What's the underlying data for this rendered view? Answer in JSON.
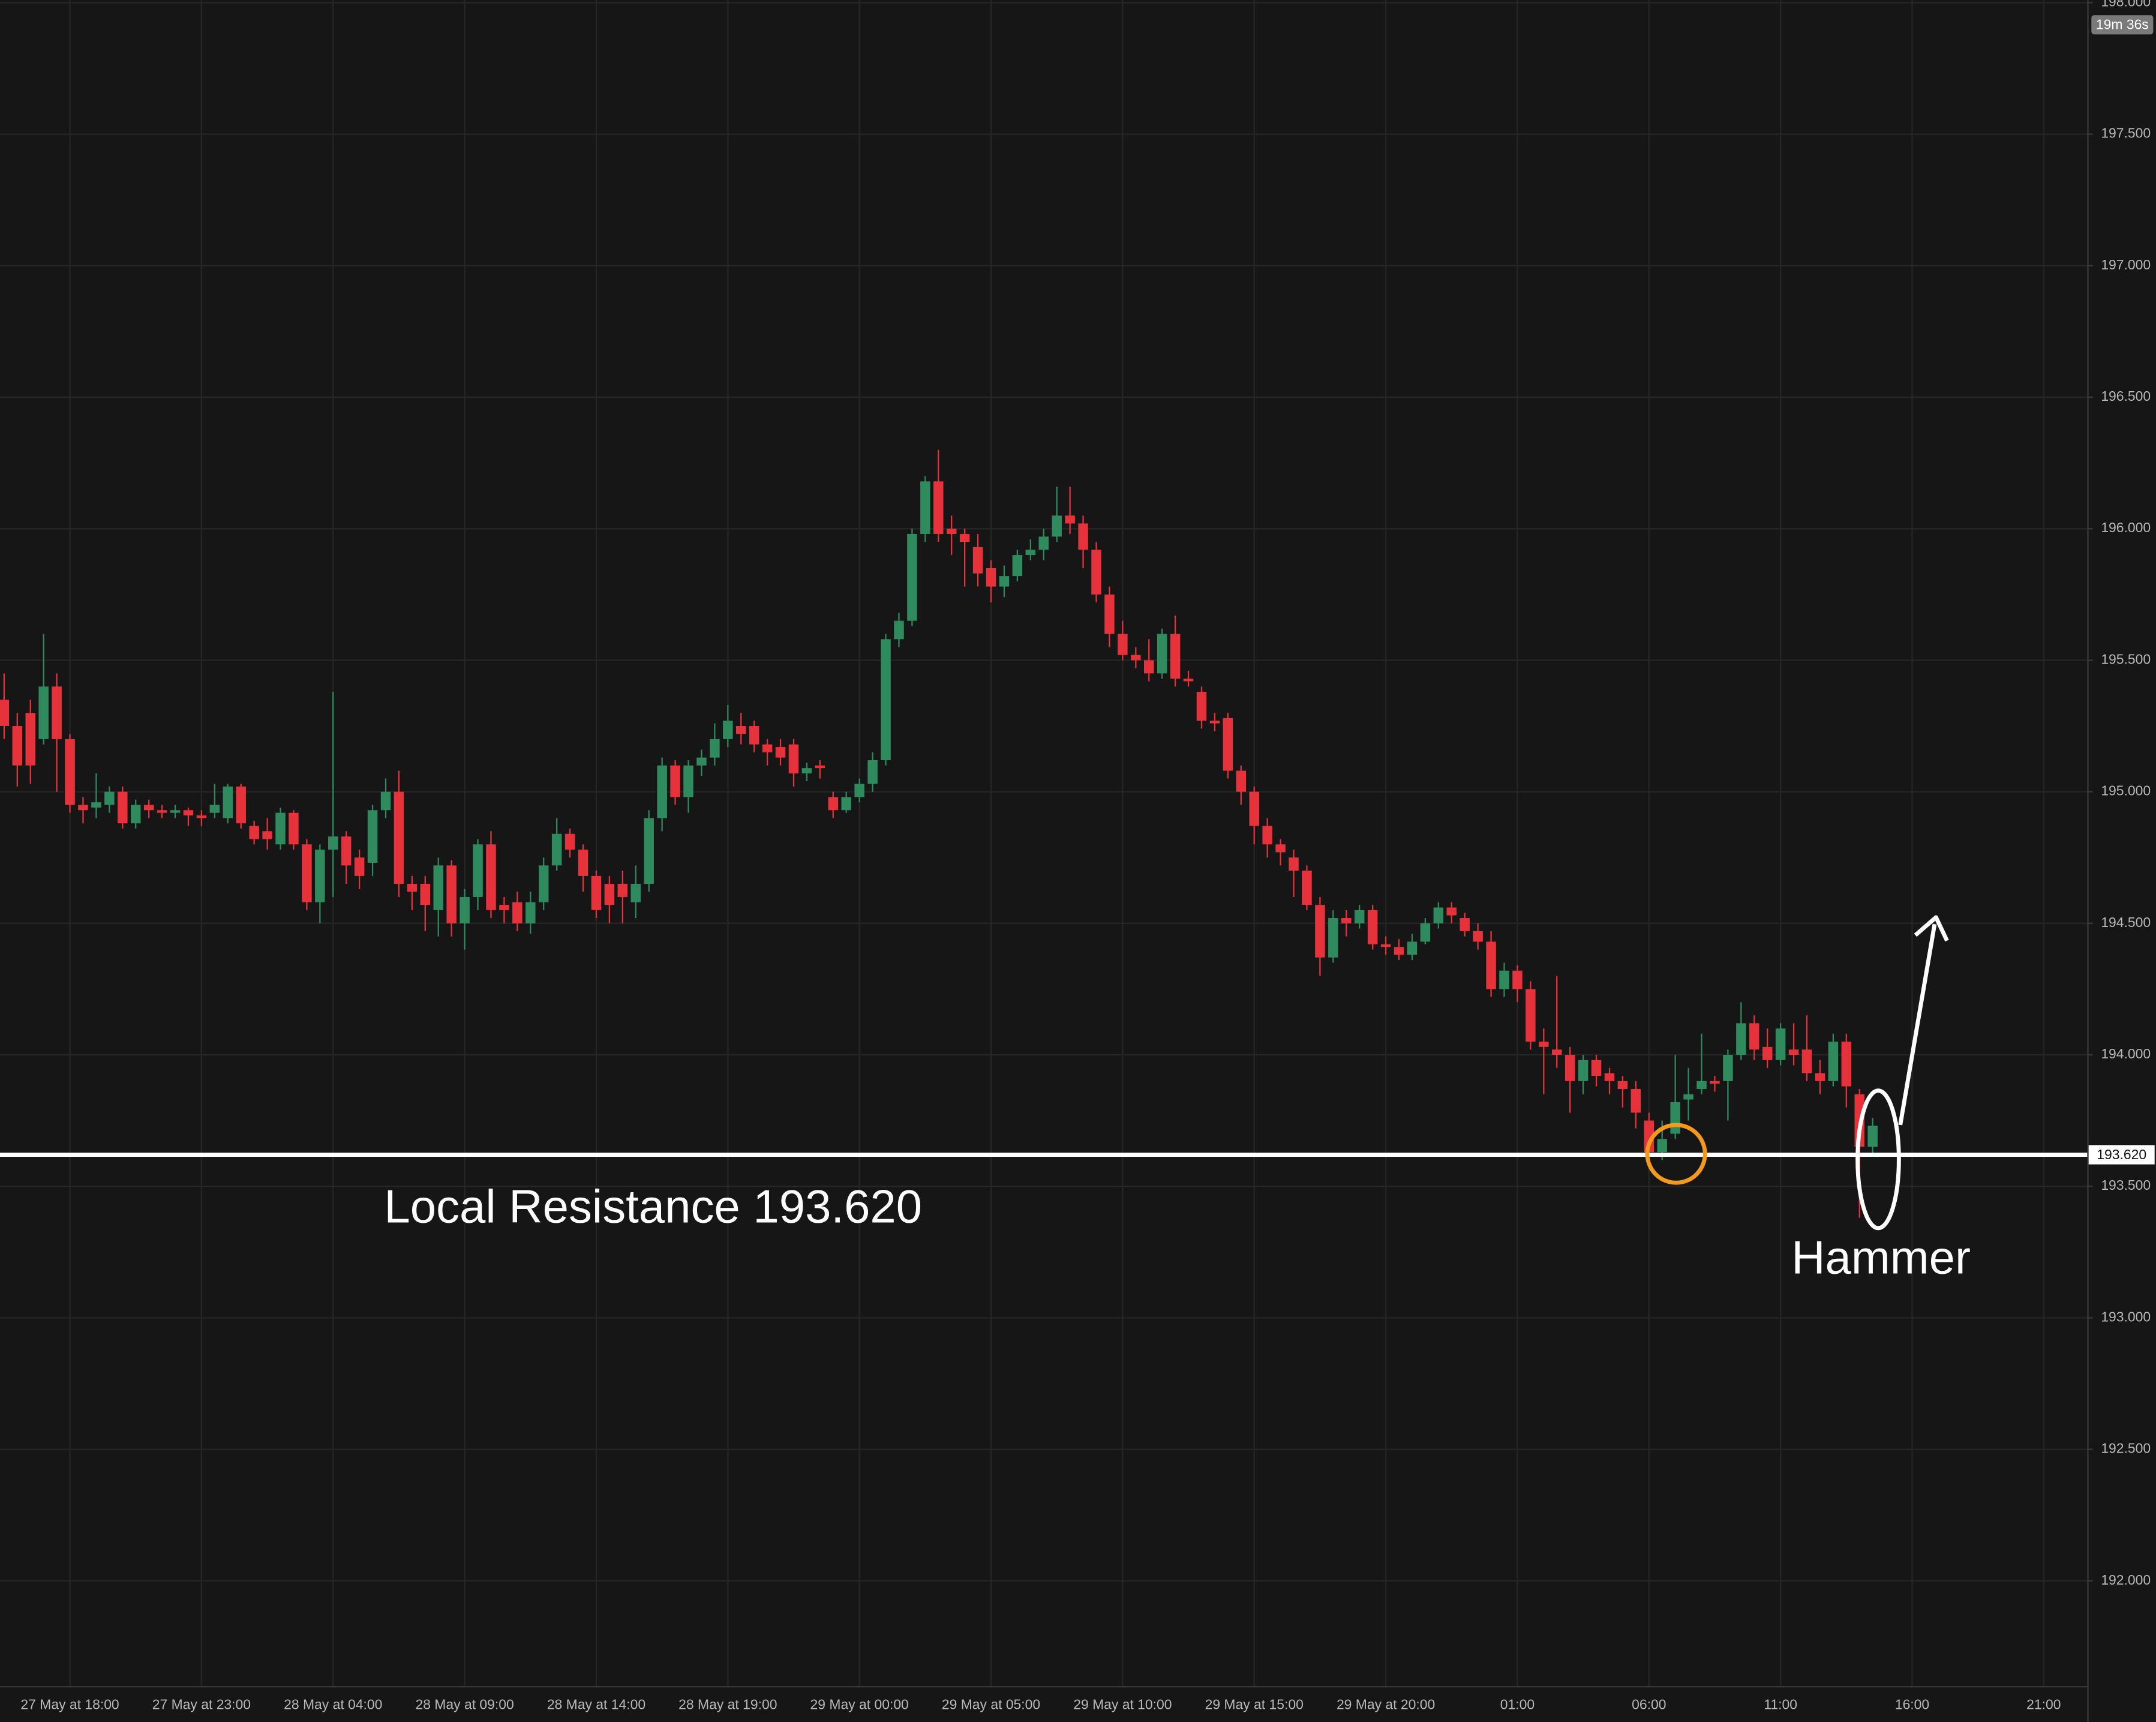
{
  "chart_data": {
    "type": "candlestick",
    "up_color": "#2f8a5e",
    "down_color": "#e5323b",
    "grid": true,
    "ylim": [
      191.6,
      198.01
    ],
    "yticks": [
      {
        "value": 192,
        "label": "192.000"
      },
      {
        "value": 192.5,
        "label": "192.500"
      },
      {
        "value": 193,
        "label": "193.000"
      },
      {
        "value": 193.5,
        "label": "193.500"
      },
      {
        "value": 194,
        "label": "194.000"
      },
      {
        "value": 194.5,
        "label": "194.500"
      },
      {
        "value": 195,
        "label": "195.000"
      },
      {
        "value": 195.5,
        "label": "195.500"
      },
      {
        "value": 196,
        "label": "196.000"
      },
      {
        "value": 196.5,
        "label": "196.500"
      },
      {
        "value": 197,
        "label": "197.000"
      },
      {
        "value": 197.5,
        "label": "197.500"
      },
      {
        "value": 198,
        "label": "198.000"
      }
    ],
    "categories": [
      null,
      null,
      null,
      null,
      null,
      "27 May at 18:00",
      null,
      null,
      null,
      null,
      null,
      null,
      null,
      null,
      null,
      "27 May at 23:00",
      null,
      null,
      null,
      null,
      null,
      null,
      null,
      null,
      null,
      "28 May at 04:00",
      null,
      null,
      null,
      null,
      null,
      null,
      null,
      null,
      null,
      "28 May at 09:00",
      null,
      null,
      null,
      null,
      null,
      null,
      null,
      null,
      null,
      "28 May at 14:00",
      null,
      null,
      null,
      null,
      null,
      null,
      null,
      null,
      null,
      "28 May at 19:00",
      null,
      null,
      null,
      null,
      null,
      null,
      null,
      null,
      null,
      "29 May at 00:00",
      null,
      null,
      null,
      null,
      null,
      null,
      null,
      null,
      null,
      "29 May at 05:00",
      null,
      null,
      null,
      null,
      null,
      null,
      null,
      null,
      null,
      "29 May at 10:00",
      null,
      null,
      null,
      null,
      null,
      null,
      null,
      null,
      null,
      "29 May at 15:00",
      null,
      null,
      null,
      null,
      null,
      null,
      null,
      null,
      null,
      "29 May at 20:00",
      null,
      null,
      null,
      null,
      null,
      null,
      null,
      null,
      null,
      "01:00",
      null,
      null,
      null,
      null,
      null,
      null,
      null,
      null,
      null,
      "06:00",
      null,
      null,
      null,
      null,
      null,
      null,
      null,
      null,
      null,
      "11:00",
      null,
      null,
      null,
      null,
      null,
      null,
      null,
      null,
      null,
      "16:00",
      null,
      null,
      null,
      null,
      null,
      null,
      null,
      null,
      null,
      "21:00"
    ],
    "candles": [
      {
        "open": 195.35,
        "high": 195.45,
        "low": 195.2,
        "close": 195.25
      },
      {
        "open": 195.25,
        "high": 195.3,
        "low": 195.02,
        "close": 195.1
      },
      {
        "open": 195.3,
        "high": 195.35,
        "low": 195.03,
        "close": 195.1
      },
      {
        "open": 195.2,
        "high": 195.6,
        "low": 195.18,
        "close": 195.4
      },
      {
        "open": 195.4,
        "high": 195.45,
        "low": 195.0,
        "close": 195.2
      },
      {
        "open": 195.2,
        "high": 195.22,
        "low": 194.92,
        "close": 194.95
      },
      {
        "open": 194.95,
        "high": 194.98,
        "low": 194.88,
        "close": 194.93
      },
      {
        "open": 194.94,
        "high": 195.07,
        "low": 194.9,
        "close": 194.96
      },
      {
        "open": 194.95,
        "high": 195.02,
        "low": 194.92,
        "close": 195.0
      },
      {
        "open": 195.0,
        "high": 195.02,
        "low": 194.86,
        "close": 194.88
      },
      {
        "open": 194.88,
        "high": 194.97,
        "low": 194.86,
        "close": 194.95
      },
      {
        "open": 194.95,
        "high": 194.97,
        "low": 194.9,
        "close": 194.93
      },
      {
        "open": 194.93,
        "high": 194.95,
        "low": 194.9,
        "close": 194.92
      },
      {
        "open": 194.92,
        "high": 194.95,
        "low": 194.9,
        "close": 194.93
      },
      {
        "open": 194.93,
        "high": 194.94,
        "low": 194.87,
        "close": 194.91
      },
      {
        "open": 194.91,
        "high": 194.93,
        "low": 194.87,
        "close": 194.9
      },
      {
        "open": 194.92,
        "high": 195.03,
        "low": 194.9,
        "close": 194.95
      },
      {
        "open": 194.9,
        "high": 195.03,
        "low": 194.88,
        "close": 195.02
      },
      {
        "open": 195.02,
        "high": 195.03,
        "low": 194.86,
        "close": 194.88
      },
      {
        "open": 194.87,
        "high": 194.89,
        "low": 194.8,
        "close": 194.82
      },
      {
        "open": 194.85,
        "high": 194.9,
        "low": 194.78,
        "close": 194.82
      },
      {
        "open": 194.8,
        "high": 194.94,
        "low": 194.78,
        "close": 194.92
      },
      {
        "open": 194.92,
        "high": 194.93,
        "low": 194.78,
        "close": 194.8
      },
      {
        "open": 194.8,
        "high": 194.82,
        "low": 194.55,
        "close": 194.58
      },
      {
        "open": 194.58,
        "high": 194.8,
        "low": 194.5,
        "close": 194.78
      },
      {
        "open": 194.78,
        "high": 195.38,
        "low": 194.6,
        "close": 194.83
      },
      {
        "open": 194.83,
        "high": 194.85,
        "low": 194.65,
        "close": 194.72
      },
      {
        "open": 194.75,
        "high": 194.78,
        "low": 194.63,
        "close": 194.68
      },
      {
        "open": 194.73,
        "high": 194.95,
        "low": 194.68,
        "close": 194.93
      },
      {
        "open": 194.93,
        "high": 195.05,
        "low": 194.9,
        "close": 195.0
      },
      {
        "open": 195.0,
        "high": 195.08,
        "low": 194.6,
        "close": 194.65
      },
      {
        "open": 194.65,
        "high": 194.68,
        "low": 194.55,
        "close": 194.62
      },
      {
        "open": 194.65,
        "high": 194.68,
        "low": 194.47,
        "close": 194.57
      },
      {
        "open": 194.55,
        "high": 194.75,
        "low": 194.45,
        "close": 194.72
      },
      {
        "open": 194.72,
        "high": 194.74,
        "low": 194.45,
        "close": 194.5
      },
      {
        "open": 194.5,
        "high": 194.63,
        "low": 194.4,
        "close": 194.6
      },
      {
        "open": 194.6,
        "high": 194.82,
        "low": 194.55,
        "close": 194.8
      },
      {
        "open": 194.8,
        "high": 194.85,
        "low": 194.52,
        "close": 194.55
      },
      {
        "open": 194.57,
        "high": 194.6,
        "low": 194.5,
        "close": 194.55
      },
      {
        "open": 194.58,
        "high": 194.62,
        "low": 194.47,
        "close": 194.5
      },
      {
        "open": 194.5,
        "high": 194.62,
        "low": 194.46,
        "close": 194.58
      },
      {
        "open": 194.58,
        "high": 194.75,
        "low": 194.55,
        "close": 194.72
      },
      {
        "open": 194.72,
        "high": 194.9,
        "low": 194.7,
        "close": 194.84
      },
      {
        "open": 194.84,
        "high": 194.86,
        "low": 194.75,
        "close": 194.78
      },
      {
        "open": 194.78,
        "high": 194.8,
        "low": 194.62,
        "close": 194.68
      },
      {
        "open": 194.68,
        "high": 194.7,
        "low": 194.52,
        "close": 194.55
      },
      {
        "open": 194.65,
        "high": 194.68,
        "low": 194.5,
        "close": 194.57
      },
      {
        "open": 194.65,
        "high": 194.7,
        "low": 194.5,
        "close": 194.6
      },
      {
        "open": 194.58,
        "high": 194.72,
        "low": 194.52,
        "close": 194.65
      },
      {
        "open": 194.65,
        "high": 194.93,
        "low": 194.62,
        "close": 194.9
      },
      {
        "open": 194.9,
        "high": 195.13,
        "low": 194.85,
        "close": 195.1
      },
      {
        "open": 195.1,
        "high": 195.12,
        "low": 194.95,
        "close": 194.98
      },
      {
        "open": 194.98,
        "high": 195.12,
        "low": 194.92,
        "close": 195.1
      },
      {
        "open": 195.1,
        "high": 195.16,
        "low": 195.06,
        "close": 195.13
      },
      {
        "open": 195.13,
        "high": 195.26,
        "low": 195.1,
        "close": 195.2
      },
      {
        "open": 195.2,
        "high": 195.33,
        "low": 195.17,
        "close": 195.27
      },
      {
        "open": 195.25,
        "high": 195.3,
        "low": 195.18,
        "close": 195.22
      },
      {
        "open": 195.25,
        "high": 195.27,
        "low": 195.15,
        "close": 195.18
      },
      {
        "open": 195.18,
        "high": 195.2,
        "low": 195.1,
        "close": 195.15
      },
      {
        "open": 195.17,
        "high": 195.2,
        "low": 195.1,
        "close": 195.13
      },
      {
        "open": 195.18,
        "high": 195.2,
        "low": 195.02,
        "close": 195.07
      },
      {
        "open": 195.07,
        "high": 195.11,
        "low": 195.04,
        "close": 195.09
      },
      {
        "open": 195.1,
        "high": 195.12,
        "low": 195.05,
        "close": 195.09
      },
      {
        "open": 194.98,
        "high": 195.0,
        "low": 194.9,
        "close": 194.93
      },
      {
        "open": 194.93,
        "high": 195.0,
        "low": 194.92,
        "close": 194.98
      },
      {
        "open": 194.98,
        "high": 195.05,
        "low": 194.96,
        "close": 195.03
      },
      {
        "open": 195.03,
        "high": 195.15,
        "low": 195.0,
        "close": 195.12
      },
      {
        "open": 195.12,
        "high": 195.6,
        "low": 195.1,
        "close": 195.58
      },
      {
        "open": 195.58,
        "high": 195.68,
        "low": 195.55,
        "close": 195.65
      },
      {
        "open": 195.65,
        "high": 196.0,
        "low": 195.63,
        "close": 195.98
      },
      {
        "open": 195.98,
        "high": 196.2,
        "low": 195.95,
        "close": 196.18
      },
      {
        "open": 196.18,
        "high": 196.3,
        "low": 195.95,
        "close": 195.98
      },
      {
        "open": 196.0,
        "high": 196.05,
        "low": 195.9,
        "close": 195.98
      },
      {
        "open": 195.98,
        "high": 196.0,
        "low": 195.78,
        "close": 195.95
      },
      {
        "open": 195.93,
        "high": 195.98,
        "low": 195.78,
        "close": 195.83
      },
      {
        "open": 195.85,
        "high": 195.88,
        "low": 195.72,
        "close": 195.78
      },
      {
        "open": 195.78,
        "high": 195.86,
        "low": 195.74,
        "close": 195.82
      },
      {
        "open": 195.82,
        "high": 195.92,
        "low": 195.8,
        "close": 195.9
      },
      {
        "open": 195.9,
        "high": 195.96,
        "low": 195.88,
        "close": 195.92
      },
      {
        "open": 195.92,
        "high": 196.0,
        "low": 195.88,
        "close": 195.97
      },
      {
        "open": 195.97,
        "high": 196.16,
        "low": 195.95,
        "close": 196.05
      },
      {
        "open": 196.05,
        "high": 196.16,
        "low": 195.98,
        "close": 196.02
      },
      {
        "open": 196.02,
        "high": 196.05,
        "low": 195.85,
        "close": 195.92
      },
      {
        "open": 195.92,
        "high": 195.95,
        "low": 195.72,
        "close": 195.75
      },
      {
        "open": 195.75,
        "high": 195.78,
        "low": 195.55,
        "close": 195.6
      },
      {
        "open": 195.6,
        "high": 195.65,
        "low": 195.5,
        "close": 195.52
      },
      {
        "open": 195.52,
        "high": 195.55,
        "low": 195.47,
        "close": 195.5
      },
      {
        "open": 195.5,
        "high": 195.58,
        "low": 195.42,
        "close": 195.45
      },
      {
        "open": 195.45,
        "high": 195.62,
        "low": 195.43,
        "close": 195.6
      },
      {
        "open": 195.6,
        "high": 195.67,
        "low": 195.4,
        "close": 195.43
      },
      {
        "open": 195.43,
        "high": 195.46,
        "low": 195.4,
        "close": 195.42
      },
      {
        "open": 195.38,
        "high": 195.4,
        "low": 195.24,
        "close": 195.27
      },
      {
        "open": 195.27,
        "high": 195.3,
        "low": 195.23,
        "close": 195.26
      },
      {
        "open": 195.28,
        "high": 195.3,
        "low": 195.05,
        "close": 195.08
      },
      {
        "open": 195.08,
        "high": 195.1,
        "low": 194.95,
        "close": 195.0
      },
      {
        "open": 195.0,
        "high": 195.02,
        "low": 194.8,
        "close": 194.87
      },
      {
        "open": 194.87,
        "high": 194.9,
        "low": 194.75,
        "close": 194.8
      },
      {
        "open": 194.8,
        "high": 194.82,
        "low": 194.72,
        "close": 194.77
      },
      {
        "open": 194.75,
        "high": 194.78,
        "low": 194.6,
        "close": 194.7
      },
      {
        "open": 194.7,
        "high": 194.72,
        "low": 194.55,
        "close": 194.57
      },
      {
        "open": 194.57,
        "high": 194.6,
        "low": 194.3,
        "close": 194.37
      },
      {
        "open": 194.37,
        "high": 194.55,
        "low": 194.35,
        "close": 194.52
      },
      {
        "open": 194.52,
        "high": 194.55,
        "low": 194.45,
        "close": 194.5
      },
      {
        "open": 194.5,
        "high": 194.57,
        "low": 194.48,
        "close": 194.55
      },
      {
        "open": 194.55,
        "high": 194.57,
        "low": 194.4,
        "close": 194.42
      },
      {
        "open": 194.42,
        "high": 194.45,
        "low": 194.38,
        "close": 194.41
      },
      {
        "open": 194.41,
        "high": 194.44,
        "low": 194.36,
        "close": 194.38
      },
      {
        "open": 194.38,
        "high": 194.46,
        "low": 194.36,
        "close": 194.43
      },
      {
        "open": 194.43,
        "high": 194.52,
        "low": 194.42,
        "close": 194.5
      },
      {
        "open": 194.5,
        "high": 194.58,
        "low": 194.48,
        "close": 194.56
      },
      {
        "open": 194.56,
        "high": 194.58,
        "low": 194.5,
        "close": 194.53
      },
      {
        "open": 194.52,
        "high": 194.54,
        "low": 194.45,
        "close": 194.47
      },
      {
        "open": 194.47,
        "high": 194.5,
        "low": 194.4,
        "close": 194.43
      },
      {
        "open": 194.43,
        "high": 194.47,
        "low": 194.22,
        "close": 194.25
      },
      {
        "open": 194.25,
        "high": 194.35,
        "low": 194.22,
        "close": 194.32
      },
      {
        "open": 194.32,
        "high": 194.34,
        "low": 194.2,
        "close": 194.25
      },
      {
        "open": 194.25,
        "high": 194.28,
        "low": 194.02,
        "close": 194.05
      },
      {
        "open": 194.05,
        "high": 194.1,
        "low": 193.85,
        "close": 194.03
      },
      {
        "open": 194.02,
        "high": 194.3,
        "low": 193.95,
        "close": 194.0
      },
      {
        "open": 194.0,
        "high": 194.03,
        "low": 193.78,
        "close": 193.9
      },
      {
        "open": 193.9,
        "high": 194.0,
        "low": 193.85,
        "close": 193.98
      },
      {
        "open": 193.98,
        "high": 194.0,
        "low": 193.88,
        "close": 193.92
      },
      {
        "open": 193.93,
        "high": 193.95,
        "low": 193.85,
        "close": 193.9
      },
      {
        "open": 193.9,
        "high": 193.92,
        "low": 193.8,
        "close": 193.87
      },
      {
        "open": 193.87,
        "high": 193.9,
        "low": 193.72,
        "close": 193.78
      },
      {
        "open": 193.75,
        "high": 193.78,
        "low": 193.6,
        "close": 193.63
      },
      {
        "open": 193.63,
        "high": 193.75,
        "low": 193.6,
        "close": 193.68
      },
      {
        "open": 193.7,
        "high": 194.0,
        "low": 193.68,
        "close": 193.82
      },
      {
        "open": 193.83,
        "high": 193.95,
        "low": 193.75,
        "close": 193.85
      },
      {
        "open": 193.87,
        "high": 194.08,
        "low": 193.85,
        "close": 193.9
      },
      {
        "open": 193.9,
        "high": 193.92,
        "low": 193.86,
        "close": 193.89
      },
      {
        "open": 193.9,
        "high": 194.02,
        "low": 193.75,
        "close": 194.0
      },
      {
        "open": 194.0,
        "high": 194.2,
        "low": 193.98,
        "close": 194.12
      },
      {
        "open": 194.12,
        "high": 194.15,
        "low": 193.98,
        "close": 194.02
      },
      {
        "open": 194.03,
        "high": 194.1,
        "low": 193.95,
        "close": 193.98
      },
      {
        "open": 193.98,
        "high": 194.12,
        "low": 193.96,
        "close": 194.1
      },
      {
        "open": 194.02,
        "high": 194.12,
        "low": 193.96,
        "close": 194.0
      },
      {
        "open": 194.02,
        "high": 194.15,
        "low": 193.9,
        "close": 193.93
      },
      {
        "open": 193.93,
        "high": 193.98,
        "low": 193.85,
        "close": 193.9
      },
      {
        "open": 193.9,
        "high": 194.08,
        "low": 193.88,
        "close": 194.05
      },
      {
        "open": 194.05,
        "high": 194.08,
        "low": 193.8,
        "close": 193.88
      },
      {
        "open": 193.85,
        "high": 193.87,
        "low": 193.38,
        "close": 193.65
      },
      {
        "open": 193.65,
        "high": 193.76,
        "low": 193.62,
        "close": 193.73
      }
    ],
    "level": {
      "value": 193.62,
      "label": "193.620"
    },
    "level_annotation": "Local Resistance 193.620",
    "pattern_annotation": "Hammer",
    "countdown": "19m 36s"
  }
}
